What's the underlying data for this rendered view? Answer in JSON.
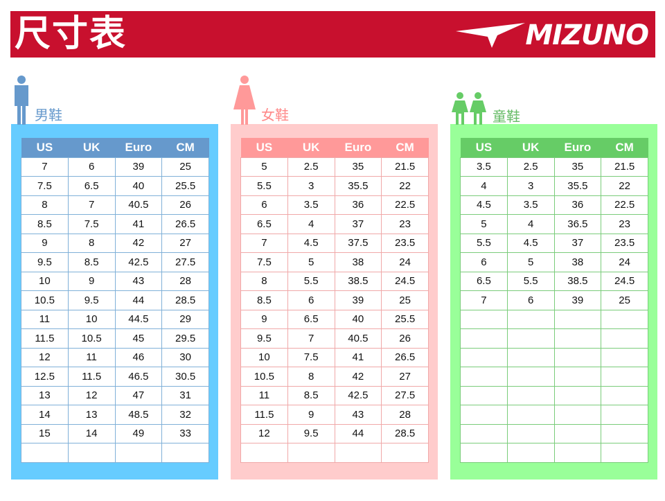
{
  "header": {
    "title": "尺寸表",
    "brand": "MIZUNO"
  },
  "colors": {
    "banner": "#c8102e",
    "men_panel": "#66ccff",
    "men_header": "#6699cc",
    "women_panel": "#ffcccc",
    "women_header": "#ff9999",
    "kids_panel": "#99ff99",
    "kids_header": "#66cc66"
  },
  "columns": [
    "US",
    "UK",
    "Euro",
    "CM"
  ],
  "men": {
    "label": "男鞋",
    "icon": "man-icon",
    "rows": [
      [
        "7",
        "6",
        "39",
        "25"
      ],
      [
        "7.5",
        "6.5",
        "40",
        "25.5"
      ],
      [
        "8",
        "7",
        "40.5",
        "26"
      ],
      [
        "8.5",
        "7.5",
        "41",
        "26.5"
      ],
      [
        "9",
        "8",
        "42",
        "27"
      ],
      [
        "9.5",
        "8.5",
        "42.5",
        "27.5"
      ],
      [
        "10",
        "9",
        "43",
        "28"
      ],
      [
        "10.5",
        "9.5",
        "44",
        "28.5"
      ],
      [
        "11",
        "10",
        "44.5",
        "29"
      ],
      [
        "11.5",
        "10.5",
        "45",
        "29.5"
      ],
      [
        "12",
        "11",
        "46",
        "30"
      ],
      [
        "12.5",
        "11.5",
        "46.5",
        "30.5"
      ],
      [
        "13",
        "12",
        "47",
        "31"
      ],
      [
        "14",
        "13",
        "48.5",
        "32"
      ],
      [
        "15",
        "14",
        "49",
        "33"
      ]
    ]
  },
  "women": {
    "label": "女鞋",
    "icon": "woman-icon",
    "rows": [
      [
        "5",
        "2.5",
        "35",
        "21.5"
      ],
      [
        "5.5",
        "3",
        "35.5",
        "22"
      ],
      [
        "6",
        "3.5",
        "36",
        "22.5"
      ],
      [
        "6.5",
        "4",
        "37",
        "23"
      ],
      [
        "7",
        "4.5",
        "37.5",
        "23.5"
      ],
      [
        "7.5",
        "5",
        "38",
        "24"
      ],
      [
        "8",
        "5.5",
        "38.5",
        "24.5"
      ],
      [
        "8.5",
        "6",
        "39",
        "25"
      ],
      [
        "9",
        "6.5",
        "40",
        "25.5"
      ],
      [
        "9.5",
        "7",
        "40.5",
        "26"
      ],
      [
        "10",
        "7.5",
        "41",
        "26.5"
      ],
      [
        "10.5",
        "8",
        "42",
        "27"
      ],
      [
        "11",
        "8.5",
        "42.5",
        "27.5"
      ],
      [
        "11.5",
        "9",
        "43",
        "28"
      ],
      [
        "12",
        "9.5",
        "44",
        "28.5"
      ]
    ]
  },
  "kids": {
    "label": "童鞋",
    "icon": "children-icon",
    "rows": [
      [
        "3.5",
        "2.5",
        "35",
        "21.5"
      ],
      [
        "4",
        "3",
        "35.5",
        "22"
      ],
      [
        "4.5",
        "3.5",
        "36",
        "22.5"
      ],
      [
        "5",
        "4",
        "36.5",
        "23"
      ],
      [
        "5.5",
        "4.5",
        "37",
        "23.5"
      ],
      [
        "6",
        "5",
        "38",
        "24"
      ],
      [
        "6.5",
        "5.5",
        "38.5",
        "24.5"
      ],
      [
        "7",
        "6",
        "39",
        "25"
      ]
    ]
  }
}
